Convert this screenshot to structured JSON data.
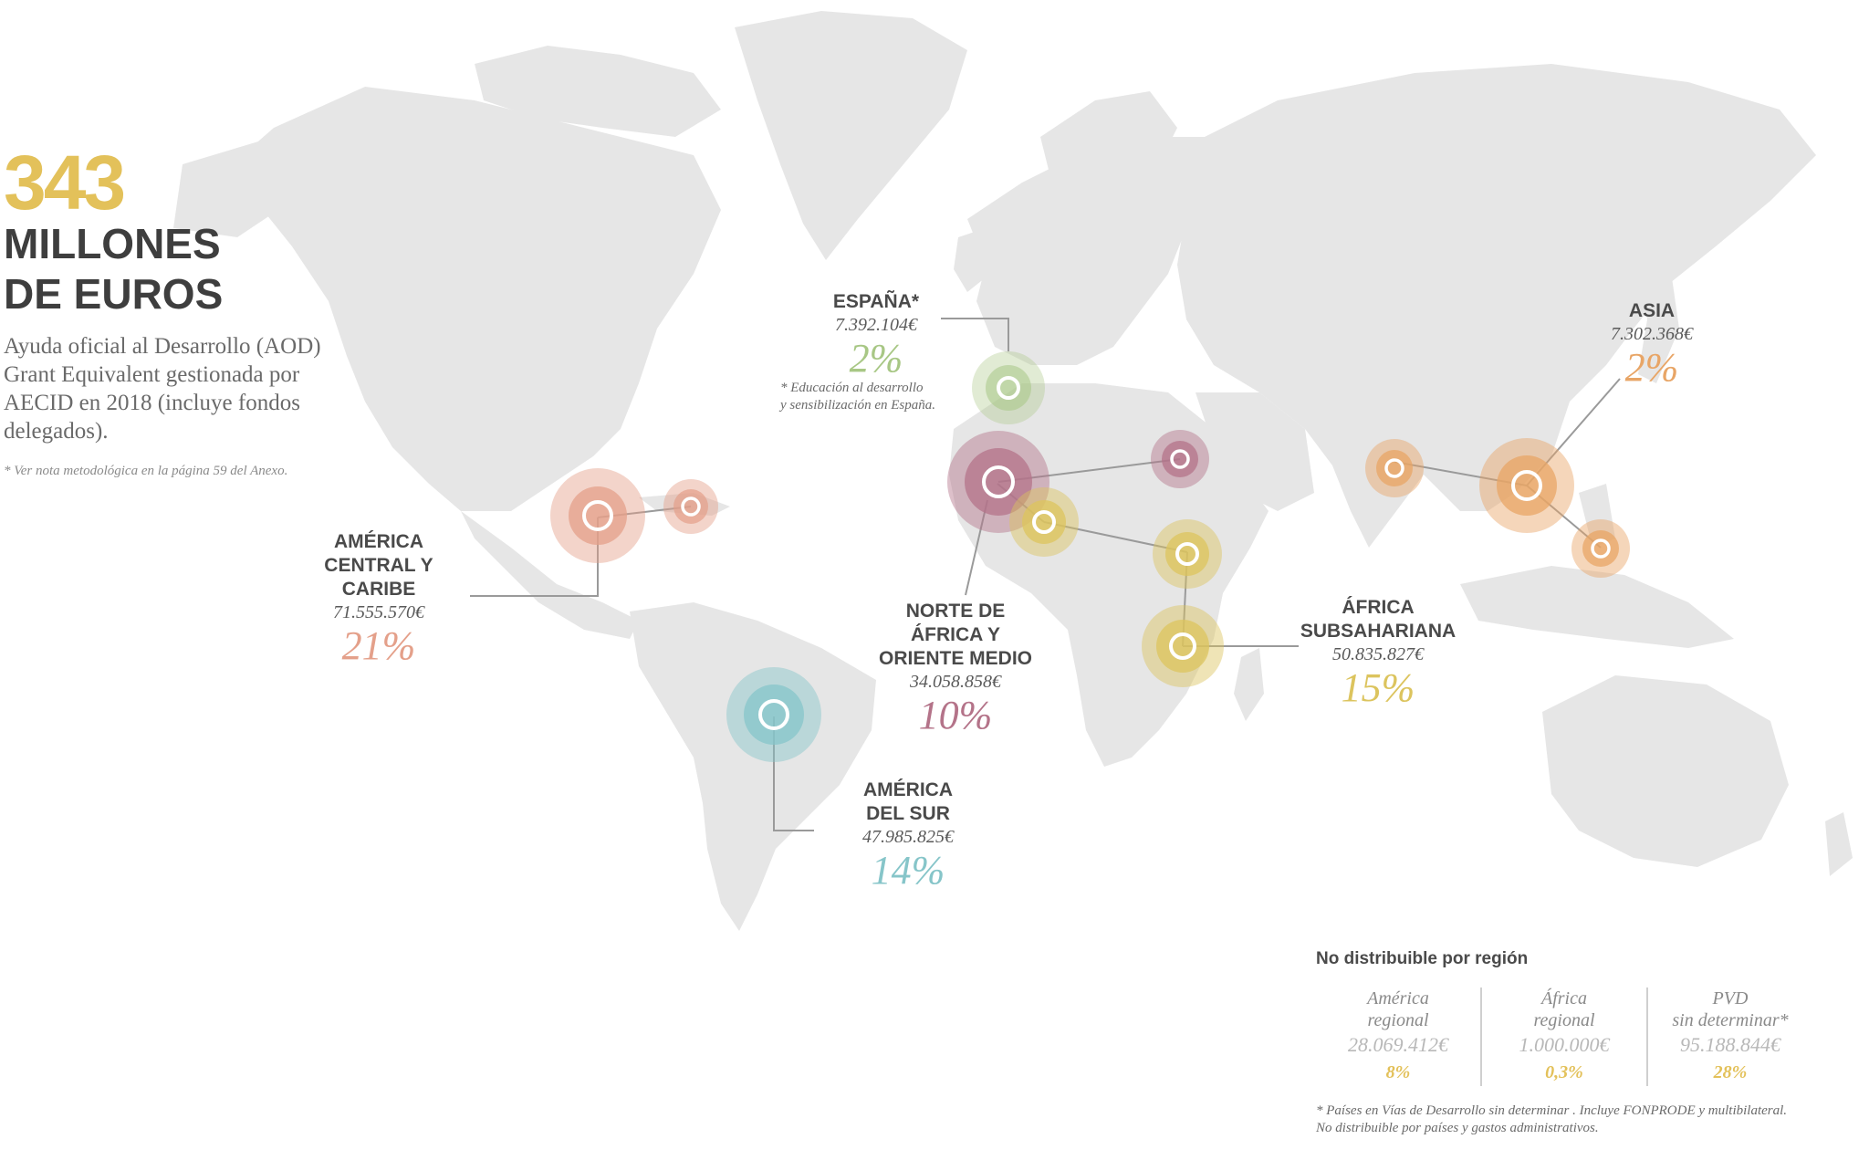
{
  "headline": {
    "total": "343",
    "unit": "MILLONES\nDE EUROS",
    "description": "Ayuda oficial al Desarrollo (AOD) Grant Equivalent gestionada por AECID en 2018 (incluye fondos delegados).",
    "note": "* Ver nota metodológica en la página 59 del Anexo."
  },
  "colors": {
    "land": "#e6e6e6",
    "america_central": "#e4a08a",
    "america_sur": "#86c5c9",
    "espana": "#a8c785",
    "norte_africa": "#b47389",
    "africa_sub": "#dcc45e",
    "asia": "#e8a566",
    "accent": "#e3c15a"
  },
  "regions": {
    "espana": {
      "name": "ESPAÑA*",
      "amount": "7.392.104€",
      "percent": "2%",
      "footnote": "* Educación al desarrollo\ny sensibilización en España."
    },
    "america_central": {
      "name": "AMÉRICA\nCENTRAL Y\nCARIBE",
      "amount": "71.555.570€",
      "percent": "21%"
    },
    "america_sur": {
      "name": "AMÉRICA\nDEL SUR",
      "amount": "47.985.825€",
      "percent": "14%"
    },
    "norte_africa": {
      "name": "NORTE DE\nÁFRICA Y\nORIENTE MEDIO",
      "amount": "34.058.858€",
      "percent": "10%"
    },
    "africa_sub": {
      "name": "ÁFRICA\nSUBSAHARIANA",
      "amount": "50.835.827€",
      "percent": "15%"
    },
    "asia": {
      "name": "ASIA",
      "amount": "7.302.368€",
      "percent": "2%"
    }
  },
  "no_distribuible": {
    "title": "No distribuible por región",
    "items": [
      {
        "name": "América\nregional",
        "amount": "28.069.412€",
        "percent": "8%"
      },
      {
        "name": "África\nregional",
        "amount": "1.000.000€",
        "percent": "0,3%"
      },
      {
        "name": "PVD\nsin determinar*",
        "amount": "95.188.844€",
        "percent": "28%"
      }
    ],
    "footnote": "* Países en Vías de Desarrollo sin determinar . Incluye FONPRODE y multibilateral.\n   No distribuible por países y gastos administrativos."
  }
}
